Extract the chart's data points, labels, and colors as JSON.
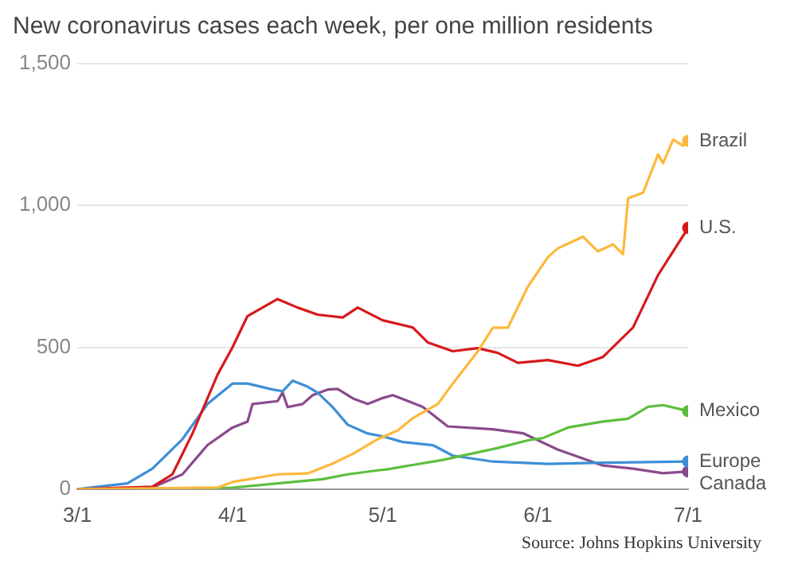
{
  "chart_data": {
    "type": "line",
    "title": "New coronavirus cases each week, per one million residents",
    "annotations": [
      "Source: Johns Hopkins University"
    ],
    "xlim": [
      "--03-01",
      "--07-01"
    ],
    "xticks": [
      {
        "value": "--03-01",
        "label": "3/1"
      },
      {
        "value": "--04-01",
        "label": "4/1"
      },
      {
        "value": "--05-01",
        "label": "5/1"
      },
      {
        "value": "--06-01",
        "label": "6/1"
      },
      {
        "value": "--07-01",
        "label": "7/1"
      }
    ],
    "ylim": [
      0,
      1500
    ],
    "yticks": [
      {
        "value": 0,
        "label": "0"
      },
      {
        "value": 500,
        "label": "500"
      },
      {
        "value": 1000,
        "label": "1,000"
      },
      {
        "value": 1500,
        "label": "1,500"
      }
    ],
    "grid": "y",
    "legend": false,
    "series": [
      {
        "name": "Brazil",
        "color": "#fdb83c",
        "x": [
          "--03-01",
          "--03-29",
          "--04-01",
          "--04-10",
          "--04-16",
          "--04-21",
          "--04-25",
          "--04-30",
          "--05-04",
          "--05-07",
          "--05-12",
          "--05-15",
          "--05-20",
          "--05-23",
          "--05-26",
          "--05-30",
          "--06-03",
          "--06-05",
          "--06-10",
          "--06-13",
          "--06-16",
          "--06-18",
          "--06-19",
          "--06-22",
          "--06-25",
          "--06-26",
          "--06-28",
          "--06-30",
          "--07-01"
        ],
        "values": [
          0,
          5,
          25,
          52,
          55,
          90,
          124,
          176,
          207,
          250,
          300,
          372,
          486,
          569,
          569,
          714,
          818,
          849,
          890,
          838,
          863,
          828,
          1025,
          1045,
          1180,
          1149,
          1232,
          1211,
          1228
        ]
      },
      {
        "name": "U.S.",
        "color": "#d7191c",
        "x": [
          "--03-01",
          "--03-16",
          "--03-20",
          "--03-24",
          "--03-29",
          "--04-01",
          "--04-04",
          "--04-10",
          "--04-14",
          "--04-18",
          "--04-23",
          "--04-26",
          "--05-01",
          "--05-07",
          "--05-10",
          "--05-15",
          "--05-20",
          "--05-24",
          "--05-28",
          "--06-03",
          "--06-09",
          "--06-14",
          "--06-20",
          "--06-25",
          "--07-01"
        ],
        "values": [
          0,
          8,
          52,
          196,
          403,
          500,
          610,
          670,
          640,
          615,
          605,
          640,
          595,
          570,
          517,
          486,
          497,
          480,
          445,
          455,
          435,
          466,
          570,
          755,
          921
        ]
      },
      {
        "name": "Mexico",
        "color": "#5cbf3c",
        "x": [
          "--03-01",
          "--04-01",
          "--04-10",
          "--04-19",
          "--04-24",
          "--04-30",
          "--05-02",
          "--05-07",
          "--05-13",
          "--05-24",
          "--05-30",
          "--06-02",
          "--06-07",
          "--06-14",
          "--06-19",
          "--06-23",
          "--06-26",
          "--07-01"
        ],
        "values": [
          0,
          5,
          20,
          35,
          52,
          66,
          70,
          85,
          103,
          145,
          172,
          180,
          217,
          238,
          248,
          290,
          296,
          275
        ]
      },
      {
        "name": "Europe",
        "color": "#3d8fd6",
        "x": [
          "--03-01",
          "--03-11",
          "--03-16",
          "--03-22",
          "--03-27",
          "--04-01",
          "--04-04",
          "--04-09",
          "--04-11",
          "--04-13",
          "--04-16",
          "--04-18",
          "--04-21",
          "--04-24",
          "--04-28",
          "--05-01",
          "--05-05",
          "--05-11",
          "--05-15",
          "--05-23",
          "--06-03",
          "--06-14",
          "--07-01"
        ],
        "values": [
          0,
          20,
          72,
          176,
          300,
          372,
          372,
          351,
          345,
          382,
          361,
          340,
          289,
          227,
          196,
          186,
          166,
          155,
          118,
          97,
          89,
          93,
          97
        ]
      },
      {
        "name": "Canada",
        "color": "#8b4a8c",
        "x": [
          "--03-01",
          "--03-16",
          "--03-22",
          "--03-27",
          "--04-01",
          "--04-04",
          "--04-05",
          "--04-10",
          "--04-11",
          "--04-12",
          "--04-15",
          "--04-17",
          "--04-20",
          "--04-22",
          "--04-25",
          "--04-28",
          "--05-01",
          "--05-03",
          "--05-09",
          "--05-14",
          "--05-23",
          "--05-29",
          "--06-05",
          "--06-14",
          "--06-20",
          "--06-26",
          "--07-01"
        ],
        "values": [
          0,
          6,
          52,
          155,
          217,
          238,
          300,
          310,
          341,
          289,
          300,
          331,
          351,
          353,
          320,
          300,
          321,
          331,
          290,
          221,
          211,
          197,
          139,
          83,
          72,
          56,
          62
        ]
      }
    ]
  }
}
